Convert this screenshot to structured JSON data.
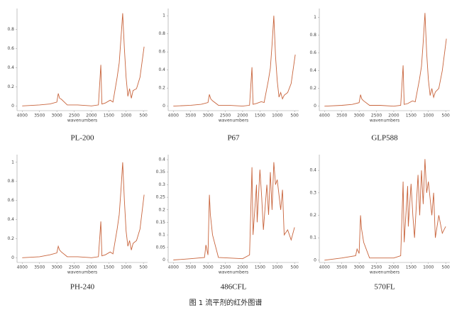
{
  "chart_data": [
    {
      "type": "line",
      "title": "PL-200",
      "x_label": "wavenumbers",
      "color": "#c8643c",
      "x": [
        4000,
        3500,
        3200,
        3000,
        2960,
        2920,
        2870,
        2700,
        2400,
        2000,
        1800,
        1730,
        1700,
        1600,
        1460,
        1380,
        1260,
        1200,
        1150,
        1100,
        1050,
        1000,
        950,
        900,
        850,
        800,
        700,
        600,
        480
      ],
      "values": [
        0,
        0.01,
        0.02,
        0.04,
        0.13,
        0.08,
        0.07,
        0.01,
        0.01,
        0,
        0.01,
        0.43,
        0.02,
        0.03,
        0.06,
        0.04,
        0.3,
        0.45,
        0.7,
        0.97,
        0.6,
        0.3,
        0.1,
        0.18,
        0.08,
        0.16,
        0.18,
        0.3,
        0.62
      ],
      "xlim": [
        4150,
        380
      ],
      "xticks": [
        4000,
        3500,
        3000,
        2500,
        2000,
        1500,
        1000,
        500
      ],
      "ylim": [
        -0.05,
        1.02
      ],
      "yticks": [
        0,
        0.2,
        0.4,
        0.6,
        0.8
      ]
    },
    {
      "type": "line",
      "title": "P67",
      "x_label": "wavenumbers",
      "color": "#c8643c",
      "x": [
        4000,
        3500,
        3200,
        3000,
        2960,
        2920,
        2870,
        2700,
        2400,
        2000,
        1800,
        1730,
        1700,
        1600,
        1460,
        1380,
        1260,
        1200,
        1150,
        1100,
        1050,
        1000,
        950,
        900,
        850,
        800,
        700,
        600,
        480
      ],
      "values": [
        0,
        0.01,
        0.02,
        0.04,
        0.13,
        0.08,
        0.06,
        0.01,
        0.01,
        0,
        0.01,
        0.43,
        0.02,
        0.03,
        0.05,
        0.04,
        0.28,
        0.42,
        0.68,
        1.0,
        0.55,
        0.28,
        0.1,
        0.15,
        0.08,
        0.12,
        0.15,
        0.25,
        0.57
      ],
      "xlim": [
        4150,
        380
      ],
      "xticks": [
        4000,
        3500,
        3000,
        2500,
        2000,
        1500,
        1000,
        500
      ],
      "ylim": [
        -0.05,
        1.08
      ],
      "yticks": [
        0,
        0.2,
        0.4,
        0.6,
        0.8,
        1
      ]
    },
    {
      "type": "line",
      "title": "GLP588",
      "x_label": "wavenumbers",
      "color": "#c8643c",
      "x": [
        4000,
        3500,
        3200,
        3000,
        2960,
        2920,
        2870,
        2700,
        2400,
        2000,
        1800,
        1730,
        1700,
        1600,
        1460,
        1380,
        1260,
        1200,
        1150,
        1100,
        1050,
        1000,
        950,
        900,
        850,
        800,
        700,
        600,
        480
      ],
      "values": [
        0,
        0.01,
        0.02,
        0.04,
        0.13,
        0.08,
        0.06,
        0.01,
        0.01,
        0,
        0.01,
        0.46,
        0.02,
        0.03,
        0.06,
        0.05,
        0.3,
        0.45,
        0.72,
        1.05,
        0.6,
        0.3,
        0.12,
        0.2,
        0.1,
        0.16,
        0.2,
        0.4,
        0.76
      ],
      "xlim": [
        4150,
        380
      ],
      "xticks": [
        4000,
        3500,
        3000,
        2500,
        2000,
        1500,
        1000,
        500
      ],
      "ylim": [
        -0.05,
        1.1
      ],
      "yticks": [
        0,
        0.2,
        0.4,
        0.6,
        0.8,
        1
      ]
    },
    {
      "type": "line",
      "title": "PH-240",
      "x_label": "wavenumbers",
      "color": "#c8643c",
      "x": [
        4000,
        3500,
        3200,
        3000,
        2960,
        2920,
        2870,
        2700,
        2400,
        2000,
        1800,
        1730,
        1700,
        1600,
        1460,
        1380,
        1260,
        1200,
        1150,
        1100,
        1050,
        1000,
        950,
        900,
        850,
        800,
        700,
        600,
        480
      ],
      "values": [
        0,
        0.01,
        0.03,
        0.05,
        0.12,
        0.08,
        0.06,
        0.01,
        0.01,
        0,
        0.01,
        0.38,
        0.02,
        0.03,
        0.06,
        0.04,
        0.3,
        0.45,
        0.7,
        1.0,
        0.6,
        0.28,
        0.12,
        0.18,
        0.08,
        0.15,
        0.18,
        0.3,
        0.66
      ],
      "xlim": [
        4150,
        380
      ],
      "xticks": [
        4000,
        3500,
        3000,
        2500,
        2000,
        1500,
        1000,
        500
      ],
      "ylim": [
        -0.05,
        1.08
      ],
      "yticks": [
        0,
        0.2,
        0.4,
        0.6,
        0.8,
        1
      ]
    },
    {
      "type": "line",
      "title": "486CFL",
      "x_label": "wavenumbers",
      "color": "#c8643c",
      "x": [
        4000,
        3500,
        3100,
        3060,
        3000,
        2960,
        2930,
        2870,
        2700,
        2000,
        1800,
        1730,
        1700,
        1600,
        1580,
        1500,
        1450,
        1400,
        1300,
        1250,
        1200,
        1150,
        1100,
        1050,
        1000,
        900,
        850,
        800,
        700,
        600,
        500
      ],
      "values": [
        0,
        0.005,
        0.01,
        0.06,
        0.02,
        0.26,
        0.18,
        0.1,
        0.01,
        0.005,
        0.02,
        0.37,
        0.1,
        0.3,
        0.15,
        0.36,
        0.25,
        0.12,
        0.3,
        0.18,
        0.35,
        0.2,
        0.39,
        0.3,
        0.32,
        0.2,
        0.28,
        0.1,
        0.12,
        0.08,
        0.13
      ],
      "xlim": [
        4150,
        380
      ],
      "xticks": [
        4000,
        3500,
        3000,
        2500,
        2000,
        1500,
        1000,
        500
      ],
      "ylim": [
        -0.01,
        0.42
      ],
      "yticks": [
        0,
        0.05,
        0.1,
        0.15,
        0.2,
        0.25,
        0.3,
        0.35,
        0.4
      ]
    },
    {
      "type": "line",
      "title": "570FL",
      "x_label": "wavenumbers",
      "color": "#c8643c",
      "x": [
        4000,
        3500,
        3100,
        3060,
        3000,
        2960,
        2930,
        2870,
        2700,
        2000,
        1800,
        1730,
        1700,
        1600,
        1580,
        1500,
        1450,
        1400,
        1300,
        1250,
        1200,
        1150,
        1100,
        1050,
        1000,
        900,
        850,
        800,
        700,
        600,
        500
      ],
      "values": [
        0,
        0.01,
        0.02,
        0.05,
        0.03,
        0.2,
        0.14,
        0.08,
        0.01,
        0.01,
        0.02,
        0.35,
        0.08,
        0.33,
        0.15,
        0.34,
        0.2,
        0.1,
        0.38,
        0.2,
        0.4,
        0.25,
        0.45,
        0.3,
        0.35,
        0.2,
        0.3,
        0.1,
        0.2,
        0.12,
        0.15
      ],
      "xlim": [
        4150,
        380
      ],
      "xticks": [
        4000,
        3500,
        3000,
        2500,
        2000,
        1500,
        1000,
        500
      ],
      "ylim": [
        -0.01,
        0.47
      ],
      "yticks": [
        0,
        0.1,
        0.2,
        0.3,
        0.4
      ]
    }
  ],
  "caption": "图 1 流平剂的红外图谱"
}
